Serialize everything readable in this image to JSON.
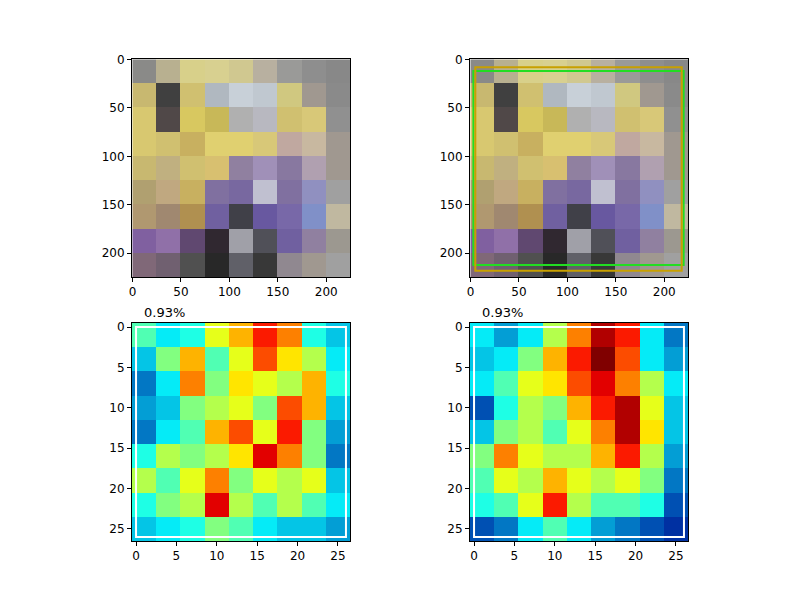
{
  "chart_data": [
    {
      "type": "image",
      "x": [
        12.5,
        37.5,
        62.5,
        87.5,
        112.5,
        137.5,
        162.5,
        187.5,
        212.5
      ],
      "y": [
        12.5,
        37.5,
        62.5,
        87.5,
        112.5,
        137.5,
        162.5,
        187.5,
        212.5
      ],
      "pixels": [
        [
          "#8a8a88",
          "#b8b090",
          "#d8d08a",
          "#d8d090",
          "#d0c890",
          "#b8b0a0",
          "#9a9a98",
          "#8e8e8e",
          "#888888"
        ],
        [
          "#c8b870",
          "#404040",
          "#d0c070",
          "#b0b8c0",
          "#c8d0d8",
          "#c0c8d0",
          "#d0c880",
          "#a09890",
          "#8a8a8a"
        ],
        [
          "#d8c870",
          "#504848",
          "#d8c860",
          "#c8b858",
          "#b0b0b0",
          "#b8b8c0",
          "#d0c070",
          "#d8c878",
          "#909090"
        ],
        [
          "#d8c870",
          "#d0c070",
          "#c8b060",
          "#e0d070",
          "#e0d070",
          "#d8c878",
          "#c0a8a0",
          "#c8b8a0",
          "#a09890"
        ],
        [
          "#c8b870",
          "#c0b080",
          "#d0c070",
          "#d8c070",
          "#9080a0",
          "#a090b8",
          "#8878a0",
          "#b0a0b0",
          "#a09890"
        ],
        [
          "#b0a070",
          "#c0a880",
          "#c8b060",
          "#8070a0",
          "#7868a0",
          "#c0c0d0",
          "#8070a0",
          "#9090c0",
          "#a0a0a0"
        ],
        [
          "#b09870",
          "#a08870",
          "#b09050",
          "#7060a0",
          "#404048",
          "#6858a0",
          "#7868a8",
          "#8090c8",
          "#c0b8a0"
        ],
        [
          "#8060a0",
          "#9070a8",
          "#604870",
          "#302830",
          "#a0a0a8",
          "#505058",
          "#7060a0",
          "#9080a0",
          "#9c9890"
        ],
        [
          "#806878",
          "#706070",
          "#505050",
          "#282828",
          "#606068",
          "#383838",
          "#908890",
          "#a09890",
          "#a0a0a0"
        ]
      ],
      "xlim": [
        -0.5,
        224.5
      ],
      "ylim": [
        224.5,
        -0.5
      ],
      "xticks": [
        0,
        50,
        100,
        150,
        200
      ],
      "yticks": [
        0,
        50,
        100,
        150,
        200
      ]
    },
    {
      "type": "image",
      "x": [
        12.5,
        37.5,
        62.5,
        87.5,
        112.5,
        137.5,
        162.5,
        187.5,
        212.5
      ],
      "y": [
        12.5,
        37.5,
        62.5,
        87.5,
        112.5,
        137.5,
        162.5,
        187.5,
        212.5
      ],
      "pixels": [
        [
          "#8a8a88",
          "#b8b090",
          "#d8d08a",
          "#d8d090",
          "#d0c890",
          "#b8b0a0",
          "#9a9a98",
          "#8e8e8e",
          "#888888"
        ],
        [
          "#c8b870",
          "#404040",
          "#d0c070",
          "#b0b8c0",
          "#c8d0d8",
          "#c0c8d0",
          "#d0c880",
          "#a09890",
          "#8a8a8a"
        ],
        [
          "#d8c870",
          "#504848",
          "#d8c860",
          "#c8b858",
          "#b0b0b0",
          "#b8b8c0",
          "#d0c070",
          "#d8c878",
          "#909090"
        ],
        [
          "#d8c870",
          "#d0c070",
          "#c8b060",
          "#e0d070",
          "#e0d070",
          "#d8c878",
          "#c0a8a0",
          "#c8b8a0",
          "#a09890"
        ],
        [
          "#c8b870",
          "#c0b080",
          "#d0c070",
          "#d8c070",
          "#9080a0",
          "#a090b8",
          "#8878a0",
          "#b0a0b0",
          "#a09890"
        ],
        [
          "#b0a070",
          "#c0a880",
          "#c8b060",
          "#8070a0",
          "#7868a0",
          "#c0c0d0",
          "#8070a0",
          "#9090c0",
          "#a0a0a0"
        ],
        [
          "#b09870",
          "#a08870",
          "#b09050",
          "#7060a0",
          "#404048",
          "#6858a0",
          "#7868a8",
          "#8090c8",
          "#c0b8a0"
        ],
        [
          "#8060a0",
          "#9070a8",
          "#604870",
          "#302830",
          "#a0a0a8",
          "#505058",
          "#7060a0",
          "#9080a0",
          "#9c9890"
        ],
        [
          "#806878",
          "#706070",
          "#505050",
          "#282828",
          "#606068",
          "#383838",
          "#908890",
          "#a09890",
          "#a0a0a0"
        ]
      ],
      "boxes": [
        {
          "x0": 3,
          "y0": 12,
          "x1": 220,
          "y1": 212,
          "color": "#22dd22"
        },
        {
          "x0": 5,
          "y0": 8,
          "x1": 218,
          "y1": 218,
          "color": "#c8a000"
        }
      ],
      "xlim": [
        -0.5,
        224.5
      ],
      "ylim": [
        224.5,
        -0.5
      ],
      "xticks": [
        0,
        50,
        100,
        150,
        200
      ],
      "yticks": [
        0,
        50,
        100,
        150,
        200
      ]
    },
    {
      "type": "heatmap",
      "title": "0.93%",
      "x": [
        1,
        4,
        7,
        10,
        13,
        16,
        19,
        22,
        25
      ],
      "y": [
        1,
        4,
        7,
        10,
        13,
        16,
        19,
        22,
        25
      ],
      "z": [
        [
          0.45,
          0.35,
          0.4,
          0.6,
          0.7,
          0.85,
          0.75,
          0.4,
          0.3
        ],
        [
          0.3,
          0.5,
          0.7,
          0.45,
          0.6,
          0.8,
          0.65,
          0.55,
          0.35
        ],
        [
          0.2,
          0.35,
          0.75,
          0.5,
          0.65,
          0.6,
          0.55,
          0.7,
          0.4
        ],
        [
          0.25,
          0.3,
          0.5,
          0.55,
          0.6,
          0.5,
          0.8,
          0.7,
          0.3
        ],
        [
          0.2,
          0.35,
          0.45,
          0.7,
          0.8,
          0.6,
          0.85,
          0.5,
          0.25
        ],
        [
          0.4,
          0.55,
          0.5,
          0.55,
          0.65,
          0.9,
          0.75,
          0.5,
          0.2
        ],
        [
          0.55,
          0.45,
          0.6,
          0.75,
          0.5,
          0.6,
          0.55,
          0.6,
          0.3
        ],
        [
          0.4,
          0.5,
          0.55,
          0.9,
          0.55,
          0.45,
          0.55,
          0.45,
          0.35
        ],
        [
          0.3,
          0.35,
          0.4,
          0.5,
          0.45,
          0.35,
          0.3,
          0.3,
          0.25
        ]
      ],
      "zlim": [
        0,
        1
      ],
      "boxes": [
        {
          "x0": 0,
          "y0": 0,
          "x1": 26,
          "y1": 26,
          "color": "#ffffff"
        }
      ],
      "xlim": [
        -0.5,
        26.5
      ],
      "ylim": [
        26.5,
        -0.5
      ],
      "xticks": [
        0,
        5,
        10,
        15,
        20,
        25
      ],
      "yticks": [
        0,
        5,
        10,
        15,
        20,
        25
      ]
    },
    {
      "type": "heatmap",
      "title": "0.93%",
      "x": [
        1,
        4,
        7,
        10,
        13,
        16,
        19,
        22,
        25
      ],
      "y": [
        1,
        4,
        7,
        10,
        13,
        16,
        19,
        22,
        25
      ],
      "z": [
        [
          0.35,
          0.25,
          0.35,
          0.55,
          0.75,
          0.95,
          0.85,
          0.35,
          0.2
        ],
        [
          0.3,
          0.35,
          0.5,
          0.7,
          0.85,
          1.0,
          0.8,
          0.35,
          0.25
        ],
        [
          0.35,
          0.45,
          0.6,
          0.65,
          0.8,
          0.9,
          0.75,
          0.55,
          0.35
        ],
        [
          0.15,
          0.4,
          0.55,
          0.5,
          0.7,
          0.85,
          0.95,
          0.6,
          0.3
        ],
        [
          0.3,
          0.5,
          0.55,
          0.45,
          0.6,
          0.75,
          0.95,
          0.65,
          0.3
        ],
        [
          0.5,
          0.75,
          0.6,
          0.55,
          0.55,
          0.7,
          0.85,
          0.55,
          0.25
        ],
        [
          0.45,
          0.6,
          0.55,
          0.7,
          0.6,
          0.55,
          0.6,
          0.5,
          0.2
        ],
        [
          0.4,
          0.45,
          0.6,
          0.85,
          0.55,
          0.45,
          0.45,
          0.4,
          0.15
        ],
        [
          0.15,
          0.2,
          0.35,
          0.45,
          0.35,
          0.25,
          0.2,
          0.15,
          0.1
        ]
      ],
      "zlim": [
        0,
        1
      ],
      "boxes": [
        {
          "x0": 0,
          "y0": 0,
          "x1": 26,
          "y1": 26,
          "color": "#ffffff"
        }
      ],
      "xlim": [
        -0.5,
        26.5
      ],
      "ylim": [
        26.5,
        -0.5
      ],
      "xticks": [
        0,
        5,
        10,
        15,
        20,
        25
      ],
      "yticks": [
        0,
        5,
        10,
        15,
        20,
        25
      ]
    }
  ]
}
